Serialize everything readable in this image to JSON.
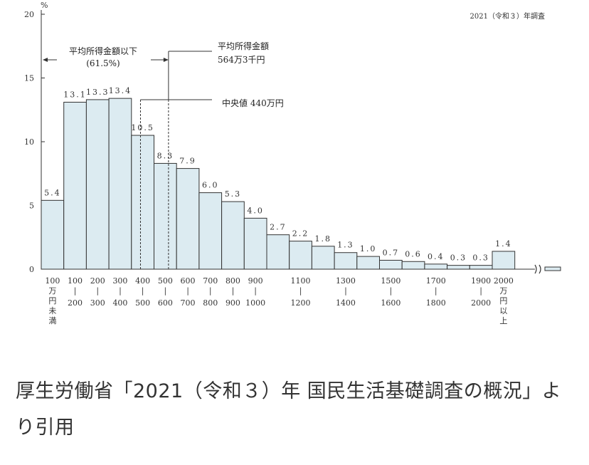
{
  "survey_note": "2021（令和３）年調査",
  "caption": "厚生労働省「2021（令和３）年 国民生活基礎調査の概況」より引用",
  "annotations": {
    "below_mean_line1": "平均所得金額以下",
    "below_mean_line2": "(61.5%)",
    "mean_line1": "平均所得金額",
    "mean_line2": "564万3千円",
    "median": "中央値 440万円"
  },
  "colors": {
    "bar_fill": "#dcebf1",
    "bar_stroke": "#333333"
  },
  "chart_data": {
    "type": "bar",
    "y_unit": "%",
    "ylim": [
      0,
      20
    ],
    "yticks": [
      0,
      5,
      10,
      15,
      20
    ],
    "grid": false,
    "bins": [
      {
        "label_top": "100",
        "label_sub": "万円未満",
        "value": 5.4
      },
      {
        "label_top": "100",
        "label_sub": "200",
        "value": 13.1
      },
      {
        "label_top": "200",
        "label_sub": "300",
        "value": 13.3
      },
      {
        "label_top": "300",
        "label_sub": "400",
        "value": 13.4
      },
      {
        "label_top": "400",
        "label_sub": "500",
        "value": 10.5
      },
      {
        "label_top": "500",
        "label_sub": "600",
        "value": 8.3
      },
      {
        "label_top": "600",
        "label_sub": "700",
        "value": 7.9
      },
      {
        "label_top": "700",
        "label_sub": "800",
        "value": 6.0
      },
      {
        "label_top": "800",
        "label_sub": "900",
        "value": 5.3
      },
      {
        "label_top": "900",
        "label_sub": "1000",
        "value": 4.0
      },
      {
        "label_top": "",
        "label_sub": "",
        "value": 2.7
      },
      {
        "label_top": "1100",
        "label_sub": "1200",
        "value": 2.2
      },
      {
        "label_top": "",
        "label_sub": "",
        "value": 1.8
      },
      {
        "label_top": "1300",
        "label_sub": "1400",
        "value": 1.3
      },
      {
        "label_top": "",
        "label_sub": "",
        "value": 1.0
      },
      {
        "label_top": "1500",
        "label_sub": "1600",
        "value": 0.7
      },
      {
        "label_top": "",
        "label_sub": "",
        "value": 0.6
      },
      {
        "label_top": "1700",
        "label_sub": "1800",
        "value": 0.4
      },
      {
        "label_top": "",
        "label_sub": "",
        "value": 0.3
      },
      {
        "label_top": "1900",
        "label_sub": "2000",
        "value": 0.3
      },
      {
        "label_top": "2000",
        "label_sub": "万円以上",
        "value": 1.4
      }
    ],
    "data_labels": [
      "5.4",
      "13.1",
      "13.3",
      "13.4",
      "10.5",
      "8.3",
      "7.9",
      "6.0",
      "5.3",
      "4.0",
      "2.7",
      "2.2",
      "1.8",
      "1.3",
      "1.0",
      "0.7",
      "0.6",
      "0.4",
      "0.3",
      "0.3",
      "1.4"
    ]
  }
}
